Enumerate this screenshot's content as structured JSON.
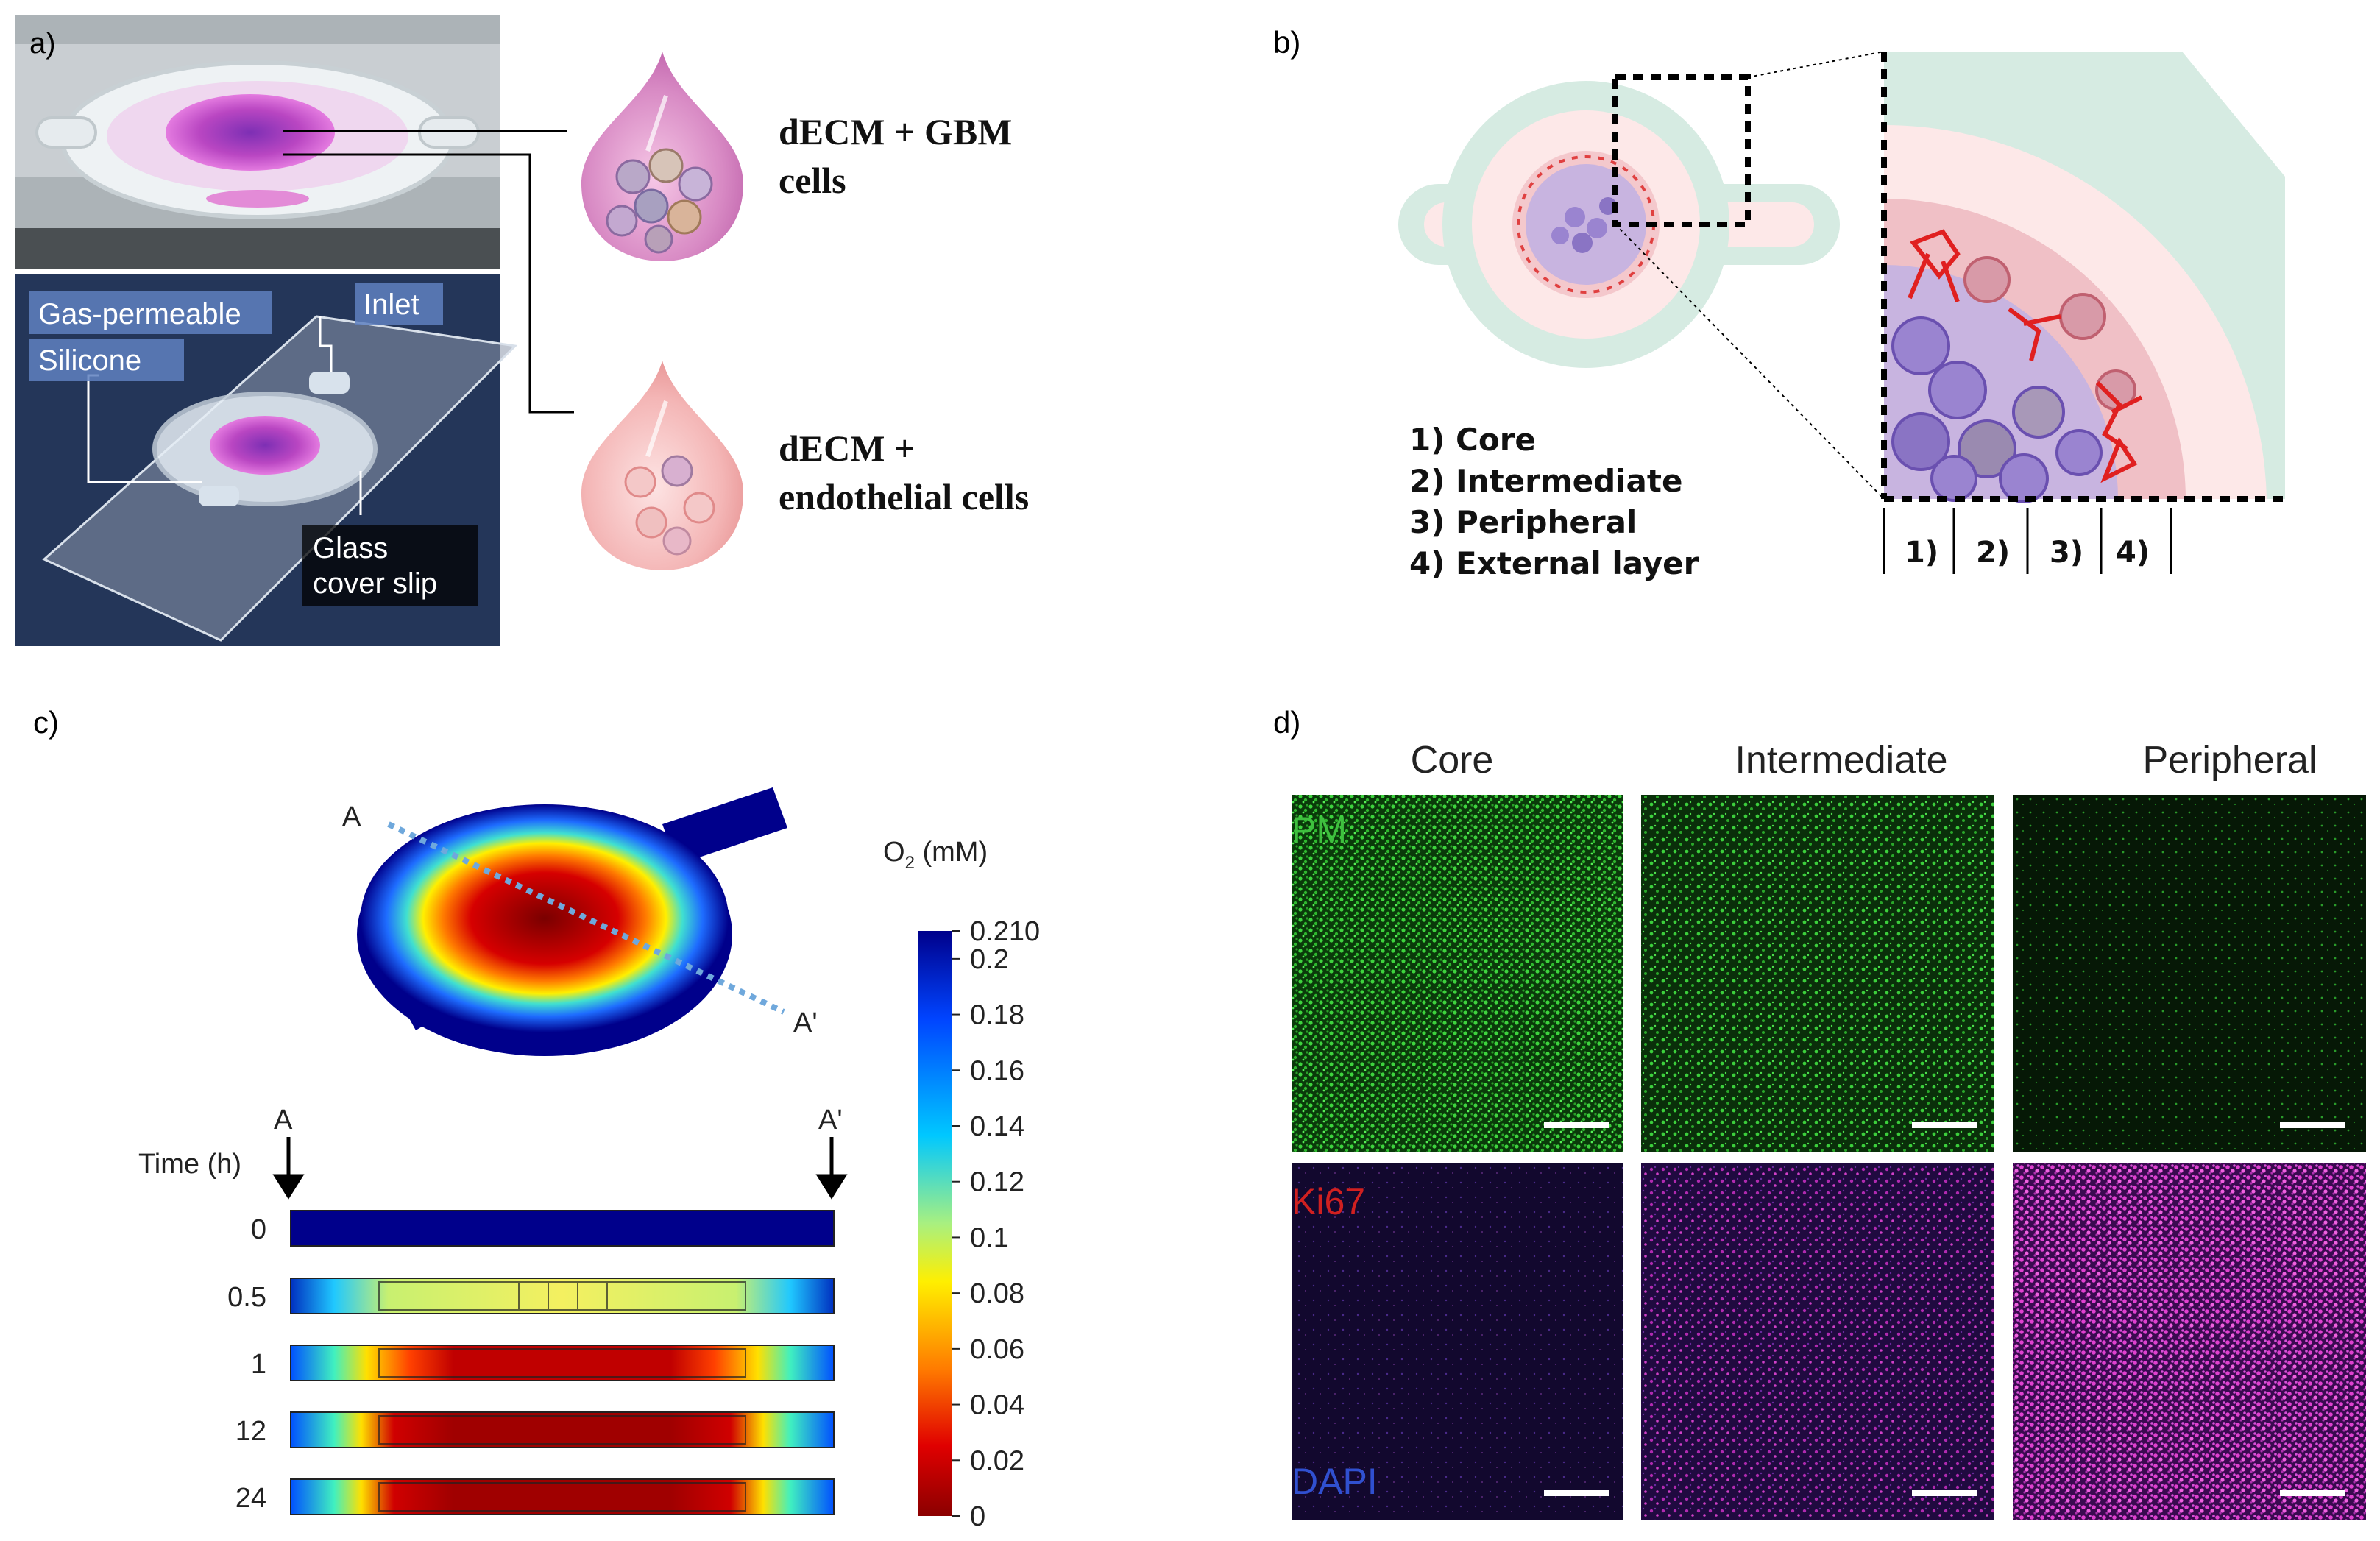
{
  "panels": {
    "a": "a)",
    "b": "b)",
    "c": "c)",
    "d": "d)"
  },
  "panel_a": {
    "labels": {
      "gas_permeable": "Gas-permeable",
      "silicone": "Silicone",
      "inlet": "Inlet",
      "glass": "Glass",
      "cover_slip": "cover slip"
    },
    "drop1": {
      "line1": "dECM + GBM",
      "line2": "cells"
    },
    "drop2": {
      "line1": "dECM +",
      "line2": "endothelial cells"
    }
  },
  "panel_b": {
    "legend": [
      "1) Core",
      "2) Intermediate",
      "3) Peripheral",
      "4) External layer"
    ],
    "zones": [
      "1)",
      "2)",
      "3)",
      "4)"
    ]
  },
  "panel_c": {
    "point_a": "A",
    "point_a_prime": "A'",
    "time_header": "Time (h)",
    "colorbar_title": "O",
    "colorbar_sub": "2",
    "colorbar_unit": " (mM)",
    "colors": {
      "low": "#8b0000",
      "high": "#1f1f9e"
    },
    "chart_data": {
      "type": "heatmap",
      "title": "O2 (mM)",
      "colorbar_ticks": [
        "0.210",
        "0.2",
        "0.18",
        "0.16",
        "0.14",
        "0.12",
        "0.1",
        "0.08",
        "0.06",
        "0.04",
        "0.02",
        "0"
      ],
      "colorbar_range": [
        0,
        0.21
      ],
      "time_points": [
        "0",
        "0.5",
        "1",
        "12",
        "24"
      ],
      "xlabel": "A to A'",
      "ylabel": "Time (h)"
    }
  },
  "panel_d": {
    "columns": [
      "Core",
      "Intermediate",
      "Peripheral"
    ],
    "row1_label": "PM",
    "row2_label_a": "Ki67",
    "row2_label_b": "DAPI"
  }
}
